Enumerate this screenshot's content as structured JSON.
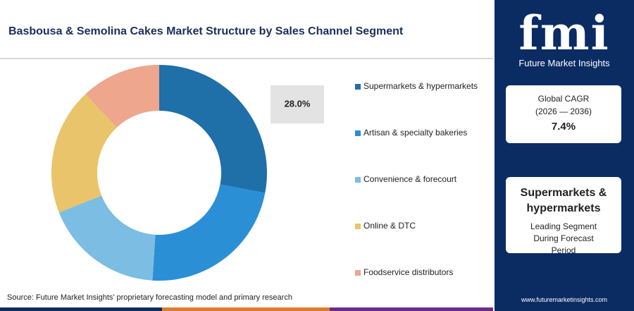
{
  "chart_data": {
    "type": "donut",
    "title": "Basbousa & Semolina Cakes Market Structure by Sales Channel Segment",
    "categories": [
      "Supermarkets & hypermarkets",
      "Artisan & specialty bakeries",
      "Convenience & forecourt",
      "Online & DTC",
      "Foodservice distributors"
    ],
    "values": [
      28,
      23,
      18,
      19,
      12
    ],
    "value_labels": [
      "28.0%",
      null,
      null,
      null,
      null
    ],
    "colors": [
      "#1f6fa8",
      "#2b8fd6",
      "#7cbde3",
      "#e9c46a",
      "#eea68c"
    ],
    "source": "Source: Future Market Insights’ proprietary forecasting model and primary research"
  },
  "sidebar": {
    "brand": "fmi",
    "brand_name": "Future Market Insights",
    "cagr_label": "Global CAGR",
    "cagr_period": "(2026 — 2036)",
    "cagr_value": "7.4%",
    "segment": "Supermarkets & hypermarkets",
    "segment_note": "Leading Segment During Forecast Period",
    "url": "www.futuremarketinsights.com"
  }
}
